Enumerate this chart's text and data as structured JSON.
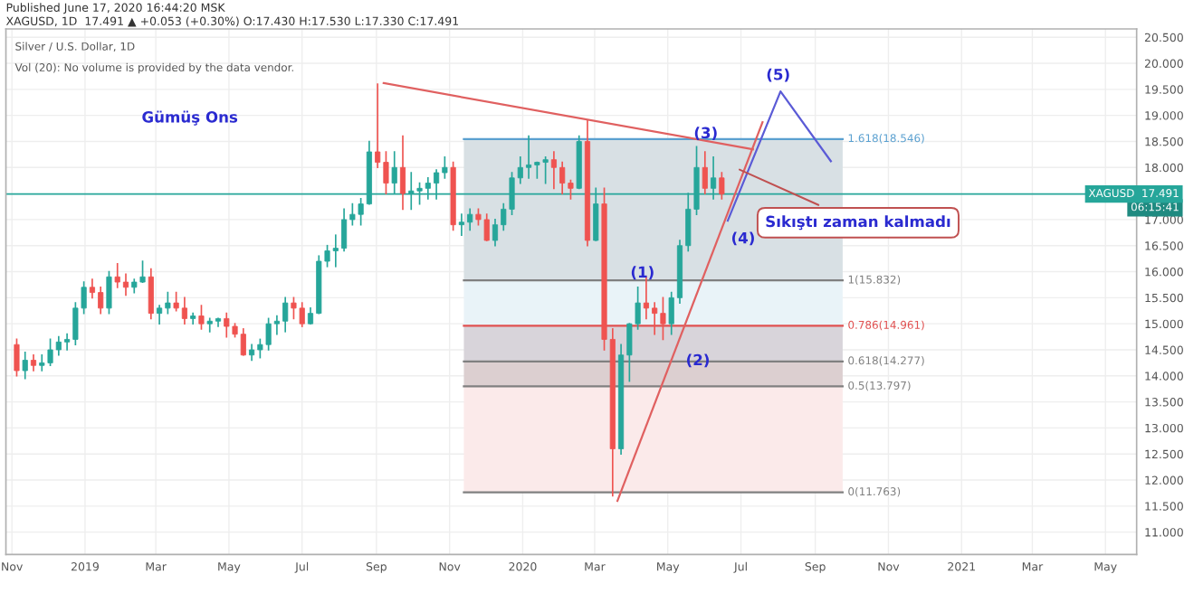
{
  "chart_data": {
    "type": "candlestick",
    "title": "Silver / U.S. Dollar, 1D",
    "x": [
      "2018-11-05",
      "2018-11-12",
      "2018-11-19",
      "2018-11-26",
      "2018-12-03",
      "2018-12-10",
      "2018-12-17",
      "2018-12-24",
      "2018-12-31",
      "2019-01-07",
      "2019-01-14",
      "2019-01-21",
      "2019-01-28",
      "2019-02-04",
      "2019-02-11",
      "2019-02-18",
      "2019-02-25",
      "2019-03-04",
      "2019-03-11",
      "2019-03-18",
      "2019-03-25",
      "2019-04-01",
      "2019-04-08",
      "2019-04-15",
      "2019-04-22",
      "2019-04-29",
      "2019-05-06",
      "2019-05-13",
      "2019-05-20",
      "2019-05-27",
      "2019-06-03",
      "2019-06-10",
      "2019-06-17",
      "2019-06-24",
      "2019-07-01",
      "2019-07-08",
      "2019-07-15",
      "2019-07-22",
      "2019-07-29",
      "2019-08-05",
      "2019-08-12",
      "2019-08-19",
      "2019-08-26",
      "2019-09-02",
      "2019-09-09",
      "2019-09-16",
      "2019-09-23",
      "2019-09-30",
      "2019-10-07",
      "2019-10-14",
      "2019-10-21",
      "2019-10-28",
      "2019-11-04",
      "2019-11-11",
      "2019-11-18",
      "2019-11-25",
      "2019-12-02",
      "2019-12-09",
      "2019-12-16",
      "2019-12-23",
      "2019-12-30",
      "2020-01-06",
      "2020-01-13",
      "2020-01-20",
      "2020-01-27",
      "2020-02-03",
      "2020-02-10",
      "2020-02-17",
      "2020-02-24",
      "2020-03-02",
      "2020-03-09",
      "2020-03-16",
      "2020-03-23",
      "2020-03-30",
      "2020-04-06",
      "2020-04-13",
      "2020-04-20",
      "2020-04-27",
      "2020-05-04",
      "2020-05-11",
      "2020-05-18",
      "2020-05-25",
      "2020-06-01",
      "2020-06-08",
      "2020-06-15"
    ],
    "ohlc": [
      [
        14.6,
        14.7,
        14.0,
        14.1
      ],
      [
        14.1,
        14.45,
        13.95,
        14.3
      ],
      [
        14.3,
        14.4,
        14.1,
        14.2
      ],
      [
        14.2,
        14.4,
        14.1,
        14.25
      ],
      [
        14.25,
        14.7,
        14.2,
        14.5
      ],
      [
        14.5,
        14.75,
        14.4,
        14.65
      ],
      [
        14.65,
        14.8,
        14.5,
        14.7
      ],
      [
        14.7,
        15.4,
        14.6,
        15.3
      ],
      [
        15.3,
        15.8,
        15.2,
        15.7
      ],
      [
        15.7,
        15.85,
        15.5,
        15.6
      ],
      [
        15.6,
        15.7,
        15.2,
        15.3
      ],
      [
        15.3,
        16.0,
        15.2,
        15.9
      ],
      [
        15.9,
        16.15,
        15.7,
        15.8
      ],
      [
        15.8,
        15.95,
        15.55,
        15.7
      ],
      [
        15.7,
        15.85,
        15.6,
        15.8
      ],
      [
        15.8,
        16.2,
        15.8,
        15.9
      ],
      [
        15.9,
        16.05,
        15.1,
        15.2
      ],
      [
        15.2,
        15.35,
        15.0,
        15.3
      ],
      [
        15.3,
        15.6,
        15.2,
        15.4
      ],
      [
        15.4,
        15.6,
        15.25,
        15.3
      ],
      [
        15.3,
        15.5,
        15.0,
        15.1
      ],
      [
        15.1,
        15.2,
        15.0,
        15.15
      ],
      [
        15.15,
        15.35,
        14.9,
        15.0
      ],
      [
        15.0,
        15.1,
        14.85,
        15.05
      ],
      [
        15.05,
        15.1,
        14.95,
        15.1
      ],
      [
        15.1,
        15.2,
        14.75,
        14.95
      ],
      [
        14.95,
        15.0,
        14.75,
        14.8
      ],
      [
        14.8,
        14.9,
        14.4,
        14.4
      ],
      [
        14.4,
        14.6,
        14.3,
        14.5
      ],
      [
        14.5,
        14.7,
        14.35,
        14.6
      ],
      [
        14.6,
        15.1,
        14.5,
        15.0
      ],
      [
        15.0,
        15.15,
        14.8,
        15.05
      ],
      [
        15.05,
        15.5,
        14.85,
        15.4
      ],
      [
        15.4,
        15.5,
        15.1,
        15.3
      ],
      [
        15.3,
        15.4,
        14.95,
        15.0
      ],
      [
        15.0,
        15.3,
        15.0,
        15.2
      ],
      [
        15.2,
        16.3,
        15.2,
        16.2
      ],
      [
        16.2,
        16.5,
        16.1,
        16.4
      ],
      [
        16.4,
        16.7,
        16.1,
        16.45
      ],
      [
        16.45,
        17.2,
        16.4,
        17.0
      ],
      [
        17.0,
        17.3,
        16.9,
        17.1
      ],
      [
        17.1,
        17.4,
        16.9,
        17.3
      ],
      [
        17.3,
        18.5,
        17.3,
        18.3
      ],
      [
        18.3,
        19.6,
        18.0,
        18.1
      ],
      [
        18.1,
        18.3,
        17.5,
        17.7
      ],
      [
        17.7,
        18.3,
        17.5,
        18.0
      ],
      [
        18.0,
        18.6,
        17.2,
        17.5
      ],
      [
        17.5,
        17.9,
        17.2,
        17.55
      ],
      [
        17.55,
        17.7,
        17.3,
        17.6
      ],
      [
        17.6,
        17.8,
        17.4,
        17.7
      ],
      [
        17.7,
        17.95,
        17.4,
        17.9
      ],
      [
        17.9,
        18.2,
        17.8,
        18.0
      ],
      [
        18.0,
        18.1,
        16.8,
        16.9
      ],
      [
        16.9,
        17.1,
        16.7,
        16.95
      ],
      [
        16.95,
        17.2,
        16.8,
        17.1
      ],
      [
        17.1,
        17.2,
        16.9,
        17.0
      ],
      [
        17.0,
        17.1,
        16.6,
        16.6
      ],
      [
        16.6,
        17.0,
        16.5,
        16.9
      ],
      [
        16.9,
        17.3,
        16.8,
        17.2
      ],
      [
        17.2,
        17.9,
        17.1,
        17.8
      ],
      [
        17.8,
        18.2,
        17.7,
        18.0
      ],
      [
        18.0,
        18.6,
        17.8,
        18.05
      ],
      [
        18.05,
        18.1,
        17.8,
        18.1
      ],
      [
        18.1,
        18.2,
        17.7,
        18.15
      ],
      [
        18.15,
        18.3,
        17.6,
        18.0
      ],
      [
        18.0,
        18.1,
        17.5,
        17.7
      ],
      [
        17.7,
        17.75,
        17.4,
        17.6
      ],
      [
        17.6,
        18.6,
        17.6,
        18.5
      ],
      [
        18.5,
        18.9,
        16.5,
        16.6
      ],
      [
        16.6,
        17.6,
        16.6,
        17.3
      ],
      [
        17.3,
        17.6,
        14.5,
        14.7
      ],
      [
        14.7,
        14.9,
        11.7,
        12.6
      ],
      [
        12.6,
        14.6,
        12.5,
        14.4
      ],
      [
        14.4,
        15.0,
        13.9,
        15.0
      ],
      [
        15.0,
        15.7,
        14.9,
        15.4
      ],
      [
        15.4,
        15.9,
        15.1,
        15.3
      ],
      [
        15.3,
        15.4,
        14.8,
        15.2
      ],
      [
        15.2,
        15.5,
        14.7,
        15.0
      ],
      [
        15.0,
        15.6,
        14.8,
        15.5
      ],
      [
        15.5,
        16.6,
        15.4,
        16.5
      ],
      [
        16.5,
        17.5,
        16.4,
        17.2
      ],
      [
        17.2,
        18.4,
        17.1,
        18.0
      ],
      [
        18.0,
        18.3,
        17.5,
        17.6
      ],
      [
        17.6,
        18.2,
        17.4,
        17.8
      ],
      [
        17.8,
        17.9,
        17.4,
        17.491
      ]
    ],
    "colors": [
      "#ef5350",
      "#26a69a",
      "#ef5350",
      "#26a69a",
      "#26a69a",
      "#26a69a",
      "#26a69a",
      "#26a69a",
      "#26a69a",
      "#ef5350",
      "#ef5350",
      "#26a69a",
      "#ef5350",
      "#ef5350",
      "#26a69a",
      "#26a69a",
      "#ef5350",
      "#26a69a",
      "#26a69a",
      "#ef5350",
      "#ef5350",
      "#26a69a",
      "#ef5350",
      "#26a69a",
      "#26a69a",
      "#ef5350",
      "#ef5350",
      "#ef5350",
      "#26a69a",
      "#26a69a",
      "#26a69a",
      "#26a69a",
      "#26a69a",
      "#ef5350",
      "#ef5350",
      "#26a69a",
      "#26a69a",
      "#26a69a",
      "#26a69a",
      "#26a69a",
      "#26a69a",
      "#26a69a",
      "#26a69a",
      "#ef5350",
      "#ef5350",
      "#26a69a",
      "#ef5350",
      "#26a69a",
      "#26a69a",
      "#26a69a",
      "#26a69a",
      "#26a69a",
      "#ef5350",
      "#26a69a",
      "#26a69a",
      "#ef5350",
      "#ef5350",
      "#26a69a",
      "#26a69a",
      "#26a69a",
      "#26a69a",
      "#26a69a",
      "#26a69a",
      "#26a69a",
      "#ef5350",
      "#ef5350",
      "#ef5350",
      "#26a69a",
      "#ef5350",
      "#26a69a",
      "#ef5350",
      "#ef5350",
      "#26a69a",
      "#26a69a",
      "#26a69a",
      "#ef5350",
      "#ef5350",
      "#ef5350",
      "#26a69a",
      "#26a69a",
      "#26a69a",
      "#26a69a",
      "#ef5350",
      "#26a69a",
      "#ef5350"
    ],
    "series": [
      {
        "type": "line",
        "color": "#e06060",
        "x": [
          "2019-09-07",
          "2020-07-11"
        ],
        "values": [
          19.62,
          18.35
        ]
      },
      {
        "type": "line",
        "color": "#e06060",
        "x": [
          "2020-03-20",
          "2020-07-19"
        ],
        "values": [
          11.6,
          18.87
        ]
      },
      {
        "type": "line",
        "color": "#5b5bd6",
        "x": [
          "2020-06-20",
          "2020-08-03",
          "2020-09-14"
        ],
        "values": [
          16.98,
          19.46,
          18.12
        ]
      }
    ],
    "bands": [
      {
        "axis": "y",
        "from": 15.832,
        "to": 18.546,
        "color": "#d8e0e4"
      },
      {
        "axis": "y",
        "from": 14.961,
        "to": 15.832,
        "color": "#e9f3f8"
      },
      {
        "axis": "y",
        "from": 14.277,
        "to": 14.961,
        "color": "#d8d4da"
      },
      {
        "axis": "y",
        "from": 13.797,
        "to": 14.277,
        "color": "#dccfd0"
      },
      {
        "axis": "y",
        "from": 11.763,
        "to": 13.797,
        "color": "#fbeaea"
      }
    ],
    "ref_lines": [
      {
        "axis": "y",
        "value": 18.546,
        "label": "1.618(18.546)",
        "color": "#5aa0d0"
      },
      {
        "axis": "y",
        "value": 15.832,
        "label": "1(15.832)",
        "color": "#808080"
      },
      {
        "axis": "y",
        "value": 14.961,
        "label": "0.786(14.961)",
        "color": "#e05050"
      },
      {
        "axis": "y",
        "value": 14.277,
        "label": "0.618(14.277)",
        "color": "#808080"
      },
      {
        "axis": "y",
        "value": 13.797,
        "label": "0.5(13.797)",
        "color": "#808080"
      },
      {
        "axis": "y",
        "value": 11.763,
        "label": "0(11.763)",
        "color": "#808080"
      },
      {
        "axis": "y",
        "value": 17.491,
        "label": "XAGUSD  17.491",
        "color": "#26a69a"
      }
    ],
    "annotations": [
      "Published June 17, 2020 16:44:20 MSK",
      "XAGUSD, 1D  17.491 ▲ +0.053 (+0.30%) O:17.430 H:17.530 L:17.330 C:17.491",
      "Vol (20): No volume is provided by the data vendor.",
      "Gümüş Ons",
      "06:15:41",
      "(1)",
      "(2)",
      "(3)",
      "(4)",
      "(5)",
      {
        "text": "Sıkıştı zaman kalmadı",
        "x": "2020-06-26",
        "y": 18.0
      }
    ],
    "xlim": [
      "2018-10-27",
      "2021-05-27"
    ],
    "xticks": [
      {
        "value": "2018-11-01",
        "label": "Nov"
      },
      {
        "value": "2019-01-01",
        "label": "2019"
      },
      {
        "value": "2019-03-01",
        "label": "Mar"
      },
      {
        "value": "2019-05-01",
        "label": "May"
      },
      {
        "value": "2019-07-01",
        "label": "Jul"
      },
      {
        "value": "2019-09-01",
        "label": "Sep"
      },
      {
        "value": "2019-11-01",
        "label": "Nov"
      },
      {
        "value": "2020-01-01",
        "label": "2020"
      },
      {
        "value": "2020-03-01",
        "label": "Mar"
      },
      {
        "value": "2020-05-01",
        "label": "May"
      },
      {
        "value": "2020-07-01",
        "label": "Jul"
      },
      {
        "value": "2020-09-01",
        "label": "Sep"
      },
      {
        "value": "2020-11-01",
        "label": "Nov"
      },
      {
        "value": "2021-01-01",
        "label": "2021"
      },
      {
        "value": "2021-03-01",
        "label": "Mar"
      },
      {
        "value": "2021-05-01",
        "label": "May"
      }
    ],
    "ylim": [
      10.57,
      20.66
    ],
    "yticks": [
      {
        "value": 20.5,
        "label": "20.500"
      },
      {
        "value": 20.0,
        "label": "20.000"
      },
      {
        "value": 19.5,
        "label": "19.500"
      },
      {
        "value": 19.0,
        "label": "19.000"
      },
      {
        "value": 18.5,
        "label": "18.500"
      },
      {
        "value": 18.0,
        "label": "18.000"
      },
      {
        "value": 17.0,
        "label": "17.000"
      },
      {
        "value": 16.5,
        "label": "16.500"
      },
      {
        "value": 16.0,
        "label": "16.000"
      },
      {
        "value": 15.5,
        "label": "15.500"
      },
      {
        "value": 15.0,
        "label": "15.000"
      },
      {
        "value": 14.5,
        "label": "14.500"
      },
      {
        "value": 14.0,
        "label": "14.000"
      },
      {
        "value": 13.5,
        "label": "13.500"
      },
      {
        "value": 13.0,
        "label": "13.000"
      },
      {
        "value": 12.5,
        "label": "12.500"
      },
      {
        "value": 12.0,
        "label": "12.000"
      },
      {
        "value": 11.5,
        "label": "11.500"
      },
      {
        "value": 11.0,
        "label": "11.000"
      }
    ],
    "grid": true
  }
}
